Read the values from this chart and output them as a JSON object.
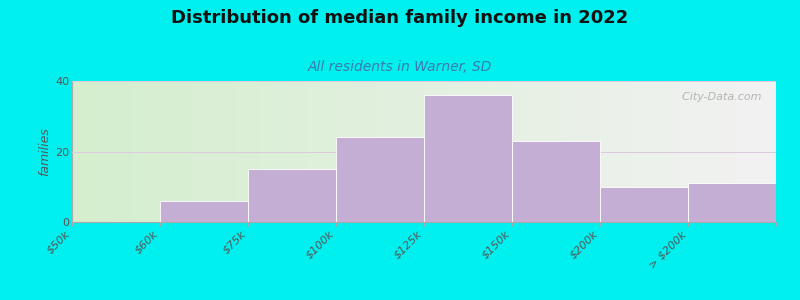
{
  "title": "Distribution of median family income in 2022",
  "subtitle": "All residents in Warner, SD",
  "ylabel": "families",
  "background_color": "#00EFEF",
  "plot_bg_left": "#d4eece",
  "plot_bg_right": "#f2f2f2",
  "bar_color": "#c4aed4",
  "bar_edge_color": "#ffffff",
  "categories": [
    "$50k",
    "$60k",
    "$75k",
    "$100k",
    "$125k",
    "$150k",
    "$200k",
    "> $200k"
  ],
  "values": [
    0,
    6,
    15,
    24,
    36,
    23,
    10,
    11
  ],
  "ylim": [
    0,
    40
  ],
  "yticks": [
    0,
    20,
    40
  ],
  "watermark": "  City-Data.com",
  "title_fontsize": 13,
  "subtitle_fontsize": 10,
  "ylabel_fontsize": 9,
  "tick_fontsize": 8,
  "grid_color": "#ddc8dd",
  "grid_linewidth": 0.7
}
